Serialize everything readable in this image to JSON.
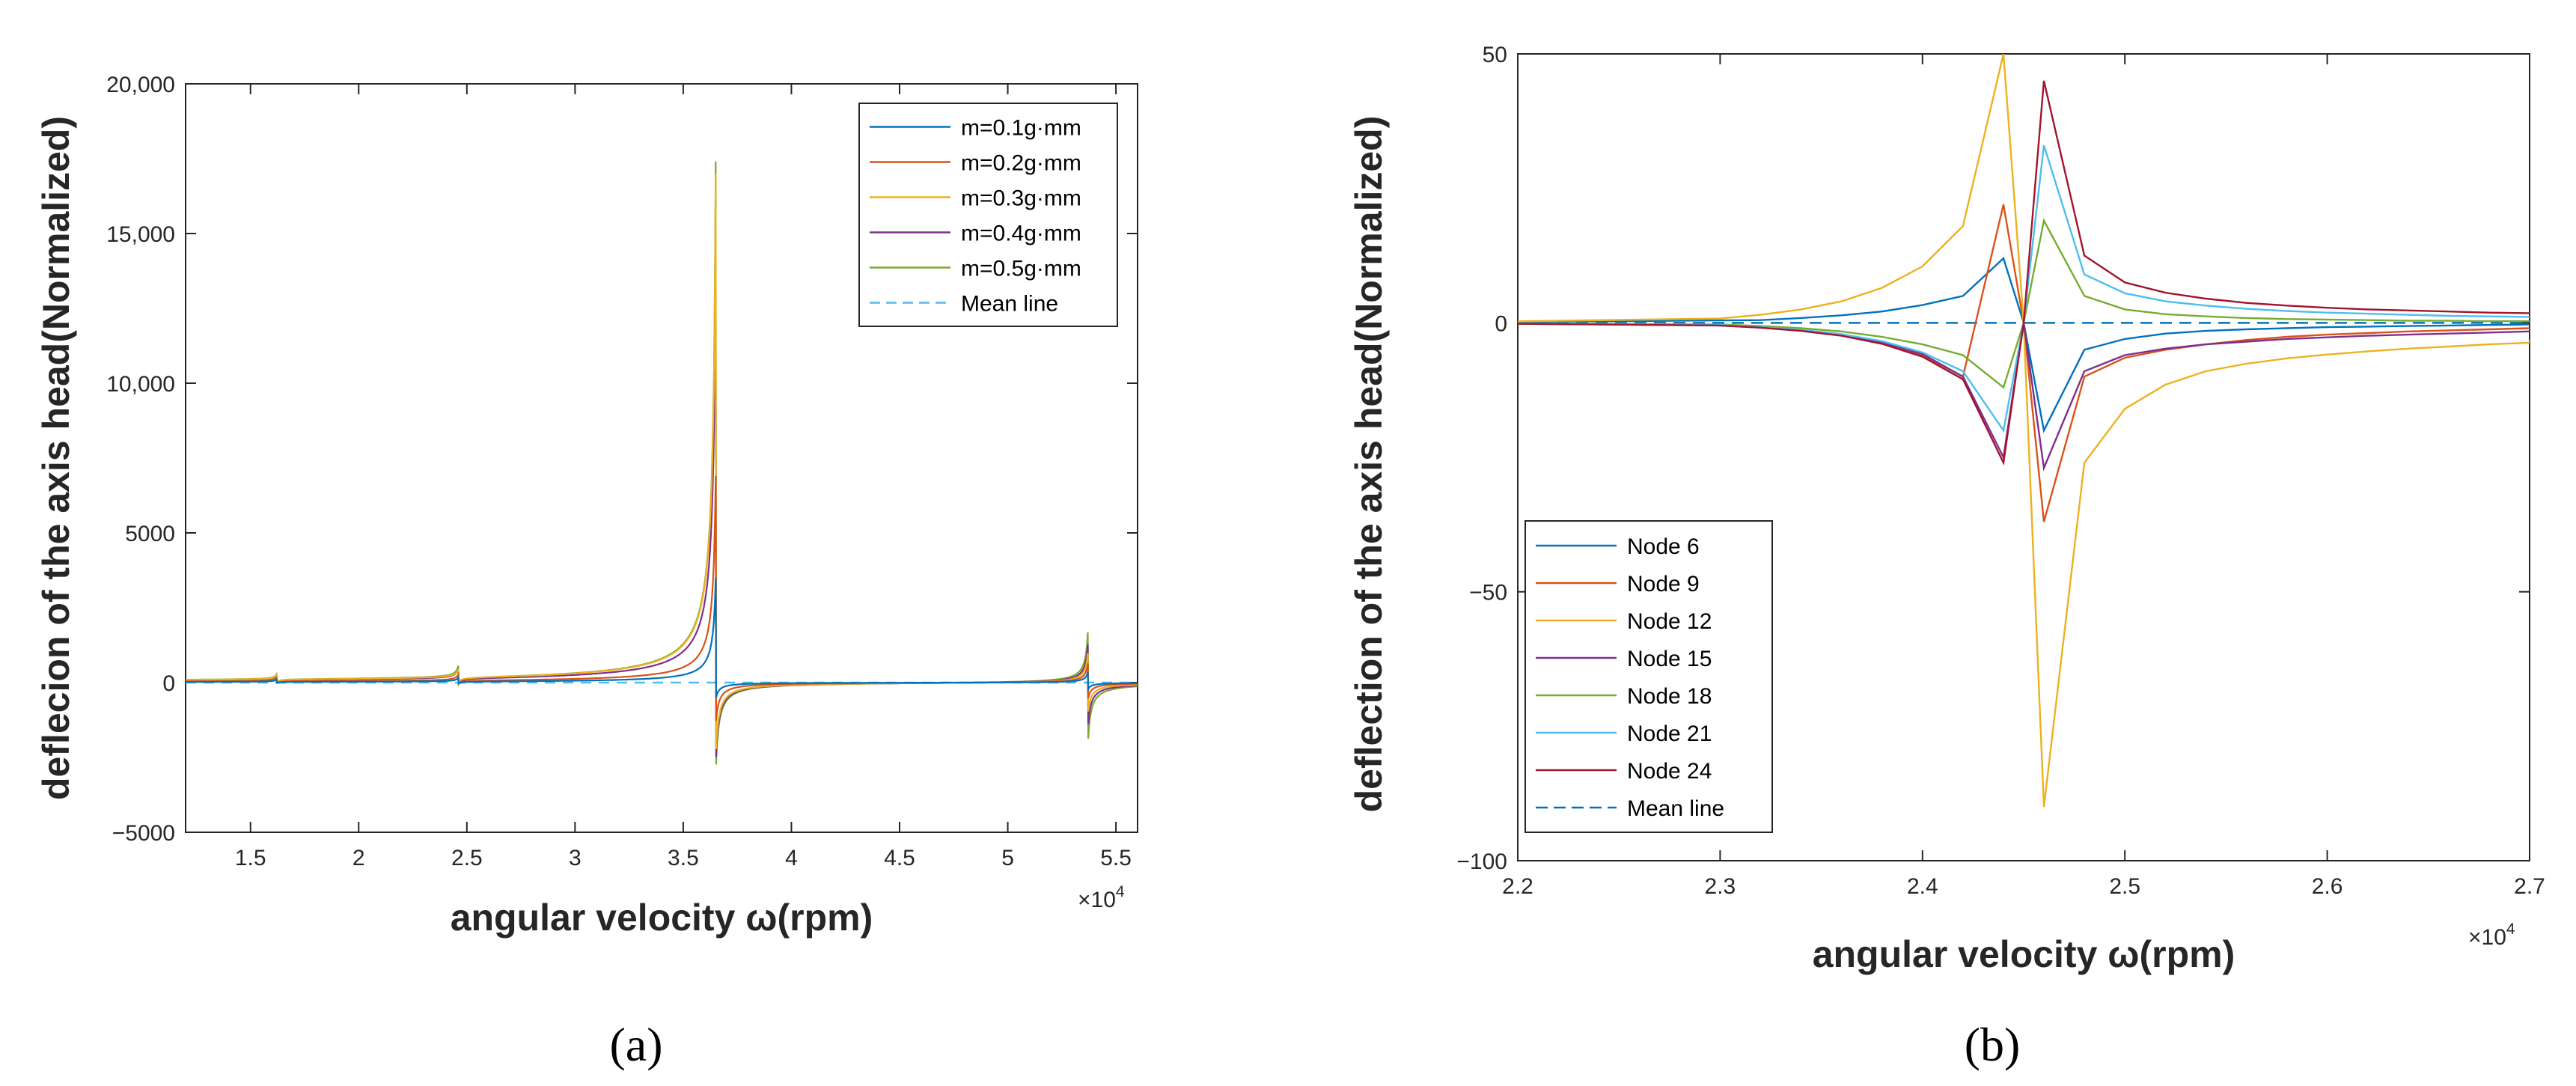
{
  "chart_data": [
    {
      "panel_label": "(a)",
      "type": "line",
      "xlabel": "angular velocity ω(rpm)",
      "ylabel": "deflecion of the axis head(Normalized)",
      "x_multiplier": "×10",
      "x_multiplier_exp": "4",
      "xlim": [
        1.2,
        5.6
      ],
      "ylim": [
        -5000,
        20000
      ],
      "xticks": [
        1.5,
        2,
        2.5,
        3,
        3.5,
        4,
        4.5,
        5,
        5.5
      ],
      "xtick_labels": [
        "1.5",
        "2",
        "2.5",
        "3",
        "3.5",
        "4",
        "4.5",
        "5",
        "5.5"
      ],
      "yticks": [
        -5000,
        0,
        5000,
        10000,
        15000,
        20000
      ],
      "ytick_labels": [
        "−5000",
        "0",
        "5000",
        "10,000",
        "15,000",
        "20,000"
      ],
      "legend_position": "top-right",
      "series": [
        {
          "name": "m=0.1g·mm",
          "color": "#0072BD",
          "peaks": [
            [
              1.62,
              80,
              -40
            ],
            [
              2.46,
              120,
              -80
            ],
            [
              3.65,
              3500,
              -600
            ],
            [
              5.37,
              350,
              -250
            ]
          ]
        },
        {
          "name": "m=0.2g·mm",
          "color": "#D95319",
          "peaks": [
            [
              1.62,
              120,
              -60
            ],
            [
              2.46,
              200,
              -130
            ],
            [
              3.65,
              6900,
              -1500
            ],
            [
              5.37,
              650,
              -600
            ]
          ]
        },
        {
          "name": "m=0.3g·mm",
          "color": "#EDB120",
          "peaks": [
            [
              1.62,
              140,
              -80
            ],
            [
              2.46,
              280,
              -180
            ],
            [
              3.65,
              17000,
              -2600
            ],
            [
              5.37,
              1000,
              -1100
            ]
          ]
        },
        {
          "name": "m=0.4g·mm",
          "color": "#7E2F8E",
          "peaks": [
            [
              1.62,
              150,
              -90
            ],
            [
              2.46,
              320,
              -200
            ],
            [
              3.65,
              14000,
              -2900
            ],
            [
              5.37,
              1300,
              -1600
            ]
          ]
        },
        {
          "name": "m=0.5g·mm",
          "color": "#77AC30",
          "peaks": [
            [
              1.62,
              160,
              -100
            ],
            [
              2.46,
              380,
              -250
            ],
            [
              3.65,
              17400,
              -3200
            ],
            [
              5.37,
              1700,
              -2150
            ]
          ]
        }
      ],
      "mean_line": {
        "name": "Mean line",
        "color": "#4DBEEE",
        "value": 0
      }
    },
    {
      "panel_label": "(b)",
      "type": "line",
      "xlabel": "angular velocity ω(rpm)",
      "ylabel": "deflection of the axis head(Normalized)",
      "x_multiplier": "×10",
      "x_multiplier_exp": "4",
      "xlim": [
        2.2,
        2.7
      ],
      "ylim": [
        -100,
        50
      ],
      "xticks": [
        2.2,
        2.3,
        2.4,
        2.5,
        2.6,
        2.7
      ],
      "xtick_labels": [
        "2.2",
        "2.3",
        "2.4",
        "2.5",
        "2.6",
        "2.7"
      ],
      "yticks": [
        -100,
        -50,
        0,
        50
      ],
      "ytick_labels": [
        "−100",
        "−50",
        "0",
        "50"
      ],
      "legend_position": "bottom-left",
      "series": [
        {
          "name": "Node 6",
          "color": "#0072BD",
          "pos": [
            0.5,
            0.9,
            1.4,
            2.1,
            3.3,
            5.0,
            12.0
          ],
          "neg": [
            -20.0,
            -5.0,
            -3.0,
            -2.0,
            -1.5,
            -1.2,
            -1.0,
            -0.8,
            -0.7,
            -0.6,
            -0.5,
            -0.4,
            -0.3
          ]
        },
        {
          "name": "Node 9",
          "color": "#D95319",
          "pos": [
            -0.5,
            -0.9,
            -1.5,
            -2.3,
            -3.8,
            -6.0,
            -10.0,
            22.0
          ],
          "neg": [
            -37.0,
            -10.0,
            -6.5,
            -5.0,
            -4.0,
            -3.2,
            -2.6,
            -2.2,
            -1.9,
            -1.6,
            -1.4,
            -1.2,
            -1.0
          ]
        },
        {
          "name": "Node 12",
          "color": "#EDB120",
          "pos": [
            0.8,
            1.5,
            2.5,
            4.0,
            6.5,
            10.5,
            18.0,
            50.0
          ],
          "neg": [
            -90.0,
            -26.0,
            -16.0,
            -11.5,
            -9.0,
            -7.6,
            -6.6,
            -5.9,
            -5.3,
            -4.8,
            -4.4,
            -4.0,
            -3.7
          ]
        },
        {
          "name": "Node 15",
          "color": "#7E2F8E",
          "pos": [
            -0.4,
            -0.8,
            -1.4,
            -2.2,
            -3.6,
            -5.8,
            -10.0,
            -25.0
          ],
          "neg": [
            -27.0,
            -9.0,
            -6.0,
            -4.8,
            -4.0,
            -3.5,
            -3.0,
            -2.7,
            -2.4,
            -2.2,
            -2.0,
            -1.8,
            -1.6
          ]
        },
        {
          "name": "Node 18",
          "color": "#77AC30",
          "pos": [
            -0.3,
            -0.6,
            -1.0,
            -1.6,
            -2.6,
            -4.0,
            -6.0,
            -12.0
          ],
          "neg": [
            19.0,
            5.0,
            2.5,
            1.6,
            1.2,
            0.9,
            0.7,
            0.6,
            0.5,
            0.4,
            0.4,
            0.3,
            0.3
          ]
        },
        {
          "name": "Node 21",
          "color": "#4DBEEE",
          "pos": [
            -0.4,
            -0.8,
            -1.3,
            -2.1,
            -3.4,
            -5.5,
            -9.0,
            -20.0
          ],
          "neg": [
            33.0,
            9.0,
            5.5,
            4.0,
            3.2,
            2.6,
            2.2,
            1.9,
            1.7,
            1.5,
            1.3,
            1.2,
            1.1
          ]
        },
        {
          "name": "Node 24",
          "color": "#A2142F",
          "pos": [
            -0.5,
            -0.9,
            -1.5,
            -2.4,
            -3.9,
            -6.3,
            -10.5,
            -26.0
          ],
          "neg": [
            45.0,
            12.5,
            7.5,
            5.6,
            4.5,
            3.7,
            3.2,
            2.8,
            2.5,
            2.3,
            2.1,
            1.9,
            1.8
          ]
        }
      ],
      "mean_line": {
        "name": "Mean line",
        "color": "#0072BD",
        "value": 0
      }
    }
  ]
}
